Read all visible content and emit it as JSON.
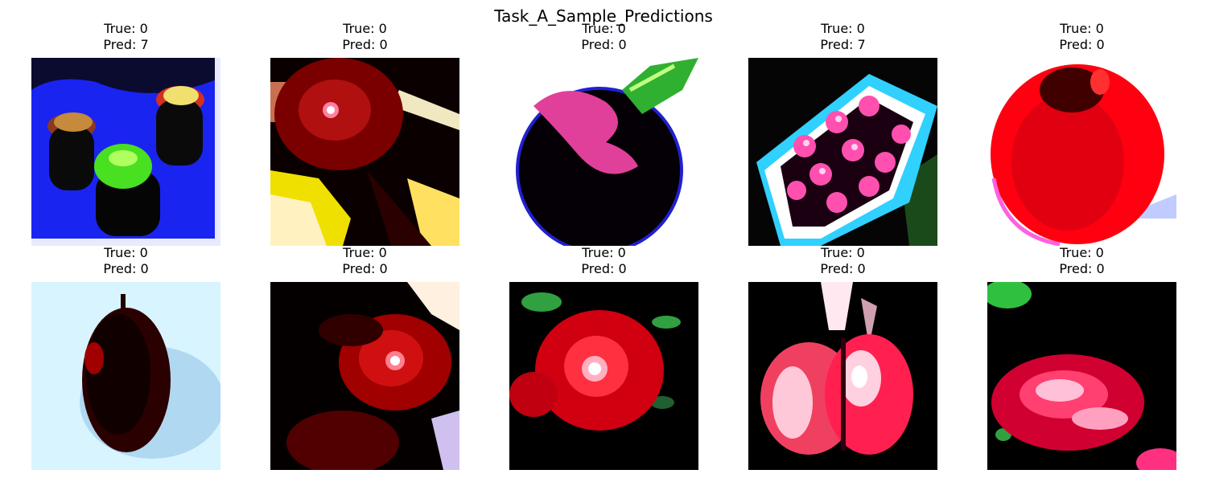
{
  "figure": {
    "title": "Task_A_Sample_Predictions"
  },
  "panels": [
    {
      "true_label": "True: 0",
      "pred_label": "Pred: 7",
      "depicts": "three apples on a blue cloth"
    },
    {
      "true_label": "True: 0",
      "pred_label": "Pred: 0",
      "depicts": "close-up of a dark red apple"
    },
    {
      "true_label": "True: 0",
      "pred_label": "Pred: 0",
      "depicts": "dark apple with a green leaf"
    },
    {
      "true_label": "True: 0",
      "pred_label": "Pred: 7",
      "depicts": "crate of pink apples"
    },
    {
      "true_label": "True: 0",
      "pred_label": "Pred: 0",
      "depicts": "single red apple on white"
    },
    {
      "true_label": "True: 0",
      "pred_label": "Pred: 0",
      "depicts": "dark apple on light background"
    },
    {
      "true_label": "True: 0",
      "pred_label": "Pred: 0",
      "depicts": "blurry red apple in shadow"
    },
    {
      "true_label": "True: 0",
      "pred_label": "Pred: 0",
      "depicts": "red apple with leaves"
    },
    {
      "true_label": "True: 0",
      "pred_label": "Pred: 0",
      "depicts": "pair of pink apples"
    },
    {
      "true_label": "True: 0",
      "pred_label": "Pred: 0",
      "depicts": "pink apple in dark scene"
    }
  ]
}
